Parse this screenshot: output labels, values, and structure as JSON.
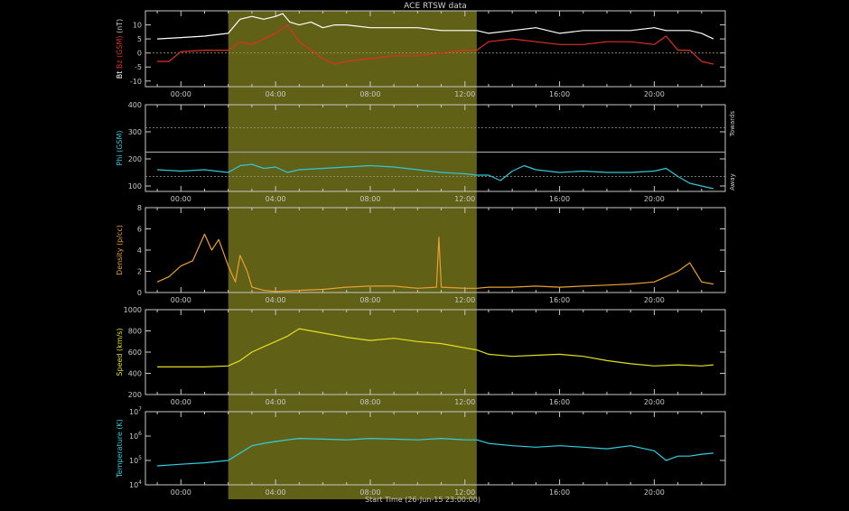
{
  "title": "ACE RTSW data",
  "start_time": "Start Time (26-Jun-15 23:00:00)",
  "x_ticks": [
    "00:00",
    "04:00",
    "08:00",
    "12:00",
    "16:00",
    "20:00"
  ],
  "colors": {
    "background": "#000000",
    "axes": "#c8c8c8",
    "highlight": "#6b6a1a",
    "bt": "#ffffff",
    "bz": "#e03020",
    "phi": "#30c8d8",
    "density": "#e8a030",
    "speed": "#e0e020",
    "temperature": "#30d0e0",
    "temperature_in_band": "#40e0a0"
  },
  "chart_data": [
    {
      "type": "line",
      "id": "mag",
      "ylabel_parts": [
        "Bt",
        "Bz (GSM)",
        "(nT)"
      ],
      "ylim": [
        -12,
        15
      ],
      "y_ticks": [
        "10",
        "5",
        "0",
        "-5",
        "-10"
      ],
      "series": [
        {
          "name": "Bt",
          "color_key": "bt",
          "x": [
            -1.0,
            0.0,
            1.0,
            2.0,
            2.5,
            3.0,
            3.5,
            4.0,
            4.3,
            4.6,
            5.0,
            5.5,
            6.0,
            6.5,
            7.0,
            8.0,
            9.0,
            10.0,
            11.0,
            12.0,
            12.5,
            13.0,
            14.0,
            15.0,
            16.0,
            17.0,
            18.0,
            19.0,
            20.0,
            20.5,
            21.0,
            21.5,
            22.0,
            22.5
          ],
          "y": [
            5,
            5.5,
            6,
            7,
            12,
            13,
            12,
            13,
            14,
            11,
            10,
            11,
            9,
            10,
            10,
            9,
            9,
            9,
            8,
            8,
            8,
            7,
            8,
            9,
            7,
            8,
            8,
            8,
            9,
            8,
            8,
            8,
            7,
            5
          ]
        },
        {
          "name": "Bz (GSM)",
          "color_key": "bz",
          "x": [
            -1.0,
            -0.5,
            0.0,
            1.0,
            2.0,
            2.5,
            3.0,
            3.5,
            4.0,
            4.5,
            5.0,
            5.5,
            6.0,
            6.5,
            7.0,
            8.0,
            9.0,
            10.0,
            11.0,
            12.0,
            12.5,
            13.0,
            14.0,
            15.0,
            16.0,
            17.0,
            18.0,
            19.0,
            20.0,
            20.5,
            21.0,
            21.5,
            22.0,
            22.5
          ],
          "y": [
            -3,
            -3,
            0.5,
            1,
            1,
            4,
            3,
            5,
            7,
            10,
            4,
            1,
            -2,
            -4,
            -3,
            -2,
            -1,
            -1,
            0,
            1,
            1,
            4,
            5,
            4,
            3,
            3,
            4,
            4,
            3,
            6,
            1,
            1,
            -3,
            -4
          ]
        }
      ]
    },
    {
      "type": "line",
      "id": "phi",
      "ylabel": "Phi (GSM)",
      "ylim": [
        80,
        400
      ],
      "y_ticks": [
        "400",
        "300",
        "200",
        "100"
      ],
      "ref_lines": [
        315,
        225,
        135
      ],
      "side_labels": [
        "Towards",
        "Away"
      ],
      "series": [
        {
          "name": "Phi (GSM)",
          "color_key": "phi",
          "x": [
            -1.0,
            0.0,
            1.0,
            2.0,
            2.5,
            3.0,
            3.5,
            4.0,
            4.5,
            5.0,
            6.0,
            7.0,
            8.0,
            9.0,
            10.0,
            11.0,
            12.0,
            12.5,
            13.0,
            13.5,
            14.0,
            14.5,
            15.0,
            16.0,
            17.0,
            18.0,
            19.0,
            20.0,
            20.5,
            21.0,
            21.5,
            22.0,
            22.5
          ],
          "y": [
            160,
            155,
            160,
            150,
            175,
            180,
            165,
            170,
            150,
            160,
            165,
            170,
            175,
            170,
            160,
            150,
            145,
            140,
            140,
            120,
            155,
            175,
            160,
            150,
            155,
            150,
            150,
            155,
            165,
            135,
            110,
            100,
            90
          ]
        }
      ]
    },
    {
      "type": "line",
      "id": "density",
      "ylabel": "Density (p/cc)",
      "ylim": [
        0,
        8
      ],
      "y_ticks": [
        "8",
        "6",
        "4",
        "2",
        "0"
      ],
      "series": [
        {
          "name": "Density (p/cc)",
          "color_key": "density",
          "x": [
            -1.0,
            -0.5,
            0.0,
            0.5,
            1.0,
            1.3,
            1.6,
            2.0,
            2.3,
            2.5,
            2.8,
            3.0,
            3.5,
            4.0,
            5.0,
            6.0,
            7.0,
            8.0,
            9.0,
            9.5,
            10.0,
            10.8,
            10.9,
            11.0,
            12.0,
            12.5,
            13.0,
            14.0,
            15.0,
            16.0,
            17.0,
            18.0,
            19.0,
            20.0,
            20.5,
            21.0,
            21.5,
            22.0,
            22.5
          ],
          "y": [
            1.0,
            1.5,
            2.5,
            3.0,
            5.5,
            4.0,
            5.0,
            2.5,
            1.0,
            3.5,
            2.0,
            0.5,
            0.2,
            0.1,
            0.2,
            0.3,
            0.5,
            0.6,
            0.6,
            0.5,
            0.4,
            0.5,
            5.2,
            0.5,
            0.4,
            0.4,
            0.5,
            0.5,
            0.6,
            0.5,
            0.6,
            0.7,
            0.8,
            1.0,
            1.5,
            2.0,
            2.8,
            1.0,
            0.8
          ]
        }
      ]
    },
    {
      "type": "line",
      "id": "speed",
      "ylabel": "Speed (km/s)",
      "ylim": [
        200,
        1000
      ],
      "y_ticks": [
        "1000",
        "800",
        "600",
        "400",
        "200"
      ],
      "series": [
        {
          "name": "Speed (km/s)",
          "color_key": "speed",
          "x": [
            -1.0,
            0.0,
            1.0,
            2.0,
            2.5,
            3.0,
            3.5,
            4.0,
            4.5,
            5.0,
            5.5,
            6.0,
            7.0,
            8.0,
            9.0,
            10.0,
            11.0,
            12.0,
            12.5,
            13.0,
            14.0,
            15.0,
            16.0,
            17.0,
            18.0,
            19.0,
            20.0,
            21.0,
            22.0,
            22.5
          ],
          "y": [
            460,
            460,
            460,
            470,
            520,
            600,
            650,
            700,
            750,
            820,
            800,
            780,
            740,
            710,
            730,
            700,
            680,
            640,
            620,
            580,
            560,
            570,
            580,
            560,
            520,
            490,
            470,
            480,
            470,
            480
          ]
        }
      ]
    },
    {
      "type": "line",
      "id": "temperature",
      "ylabel": "Temperature (K)",
      "y_scale": "log",
      "ylim": [
        10000,
        10000000
      ],
      "y_ticks": [
        "10^7",
        "10^6",
        "10^5",
        "10^4"
      ],
      "series": [
        {
          "name": "Temperature (K)",
          "color_key": "temperature",
          "x": [
            -1.0,
            0.0,
            1.0,
            2.0,
            2.5,
            3.0,
            3.5,
            4.0,
            4.5,
            5.0,
            6.0,
            7.0,
            8.0,
            9.0,
            10.0,
            11.0,
            12.0,
            12.5,
            13.0,
            14.0,
            15.0,
            16.0,
            17.0,
            18.0,
            19.0,
            20.0,
            20.5,
            21.0,
            21.5,
            22.0,
            22.5
          ],
          "y": [
            60000,
            70000,
            80000,
            100000,
            200000,
            400000,
            500000,
            600000,
            700000,
            800000,
            750000,
            700000,
            800000,
            750000,
            700000,
            800000,
            700000,
            700000,
            500000,
            400000,
            350000,
            400000,
            350000,
            300000,
            400000,
            250000,
            100000,
            150000,
            150000,
            180000,
            200000
          ]
        }
      ]
    }
  ]
}
